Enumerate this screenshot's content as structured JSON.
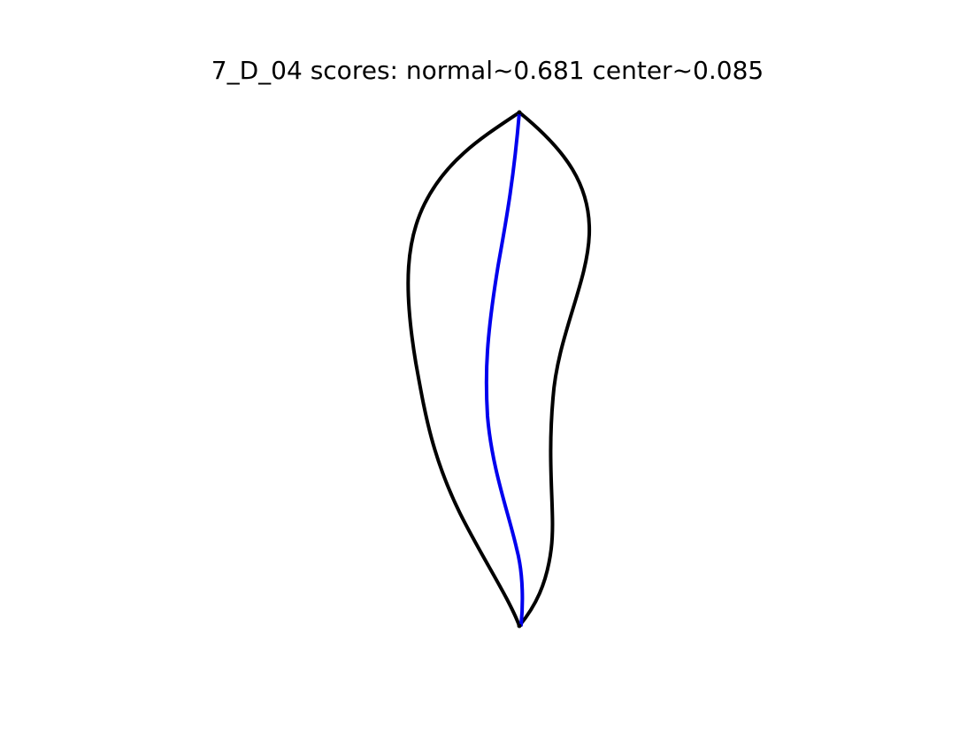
{
  "figure": {
    "title": "7_D_04 scores: normal~0.681 center~0.085",
    "background_color": "#ffffff"
  },
  "shape": {
    "outline_color": "#000000",
    "centerline_color": "#0000ee"
  }
}
